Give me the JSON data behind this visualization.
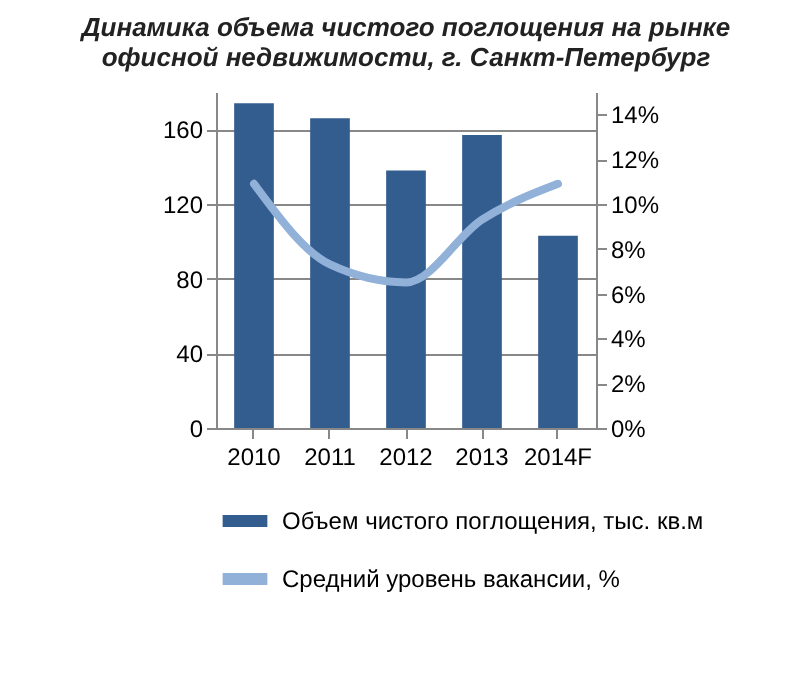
{
  "chart_data": {
    "type": "bar",
    "title": "Динамика объема чистого поглощения на рынке офисной недвижимости, г. Санкт-Петербург",
    "categories": [
      "2010",
      "2011",
      "2012",
      "2013",
      "2014F"
    ],
    "series": [
      {
        "name": "Объем чистого поглощения,  тыс. кв.м",
        "color": "#335c8f",
        "values": [
          174,
          166,
          138,
          157,
          103
        ]
      },
      {
        "name": "Средний  уровень вакансии, %",
        "color": "#92b1d9",
        "type": "line",
        "axis": "y2",
        "values": [
          10.9,
          7.3,
          6.5,
          9.3,
          10.9
        ]
      }
    ],
    "ylim": [
      0,
      180
    ],
    "yticks": [
      0,
      40,
      80,
      120,
      160
    ],
    "y2lim": [
      0,
      15
    ],
    "y2ticks": [
      {
        "value": 0,
        "label": "0%"
      },
      {
        "value": 2,
        "label": "2%"
      },
      {
        "value": 4,
        "label": "4%"
      },
      {
        "value": 6,
        "label": "6%"
      },
      {
        "value": 8,
        "label": "8%"
      },
      {
        "value": 10,
        "label": "10%"
      },
      {
        "value": 12,
        "label": "12%"
      },
      {
        "value": 14,
        "label": "14%"
      }
    ],
    "grid": "y",
    "legend": "bottom"
  }
}
